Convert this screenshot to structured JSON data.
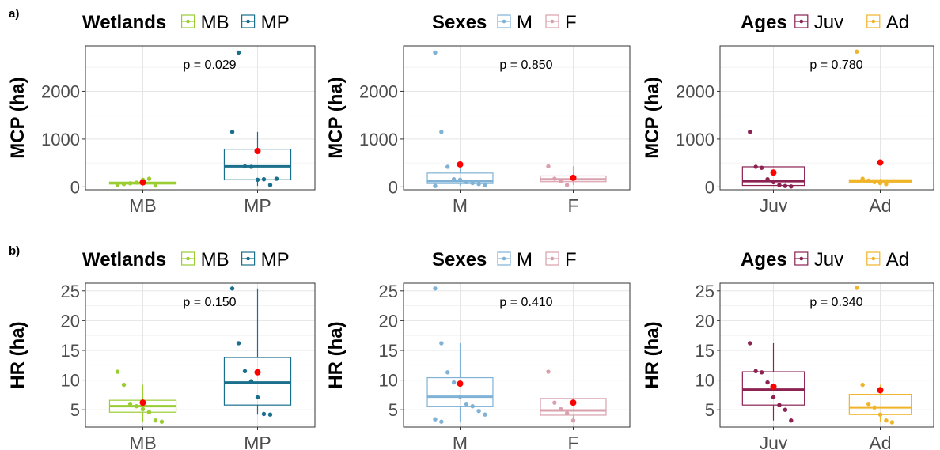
{
  "row_labels": [
    "a)",
    "b)"
  ],
  "colors": {
    "MB": "#9acd32",
    "MP": "#1a6f8c",
    "M": "#7fb2d5",
    "F": "#d9a0ad",
    "Juv": "#8b2252",
    "Ad": "#f0b429",
    "mean_point": "#ff0000"
  },
  "chart_data": [
    {
      "type": "box",
      "panel": "a) wetlands",
      "legend_title": "Wetlands",
      "categories": [
        "MB",
        "MP"
      ],
      "ylabel": "MCP (ha)",
      "ylim": [
        -60,
        2950
      ],
      "yticks": [
        0,
        1000,
        2000
      ],
      "annotation": "p = 0.029",
      "boxes": [
        {
          "name": "MB",
          "q1": 60,
          "median": 80,
          "q3": 100,
          "whisker_low": 50,
          "whisker_high": 120,
          "mean": 95,
          "points": [
            40,
            60,
            75,
            90,
            150,
            170,
            30
          ]
        },
        {
          "name": "MP",
          "q1": 150,
          "median": 430,
          "q3": 790,
          "whisker_low": 20,
          "whisker_high": 1150,
          "mean": 750,
          "points": [
            1150,
            2810,
            430,
            420,
            150,
            160,
            40,
            170
          ]
        }
      ]
    },
    {
      "type": "box",
      "panel": "a) sexes",
      "legend_title": "Sexes",
      "categories": [
        "M",
        "F"
      ],
      "ylabel": "MCP (ha)",
      "ylim": [
        -60,
        2950
      ],
      "yticks": [
        0,
        1000,
        2000
      ],
      "annotation": "p = 0.850",
      "boxes": [
        {
          "name": "M",
          "q1": 70,
          "median": 120,
          "q3": 290,
          "whisker_low": 20,
          "whisker_high": 420,
          "mean": 470,
          "points": [
            2810,
            1150,
            420,
            160,
            150,
            100,
            80,
            60,
            40,
            20
          ]
        },
        {
          "name": "F",
          "q1": 110,
          "median": 160,
          "q3": 230,
          "whisker_low": 40,
          "whisker_high": 430,
          "mean": 190,
          "points": [
            430,
            170,
            120,
            40
          ]
        }
      ]
    },
    {
      "type": "box",
      "panel": "a) ages",
      "legend_title": "Ages",
      "categories": [
        "Juv",
        "Ad"
      ],
      "ylabel": "MCP (ha)",
      "ylim": [
        -60,
        2950
      ],
      "yticks": [
        0,
        1000,
        2000
      ],
      "annotation": "p = 0.780",
      "boxes": [
        {
          "name": "Juv",
          "q1": 30,
          "median": 120,
          "q3": 420,
          "whisker_low": 20,
          "whisker_high": 420,
          "mean": 300,
          "points": [
            1150,
            420,
            400,
            160,
            100,
            40,
            20,
            10
          ]
        },
        {
          "name": "Ad",
          "q1": 100,
          "median": 130,
          "q3": 150,
          "whisker_low": 60,
          "whisker_high": 170,
          "mean": 510,
          "points": [
            2830,
            170,
            130,
            100,
            80,
            60
          ]
        }
      ]
    },
    {
      "type": "box",
      "panel": "b) wetlands",
      "legend_title": "Wetlands",
      "categories": [
        "MB",
        "MP"
      ],
      "ylabel": "HR (ha)",
      "ylim": [
        2.1,
        26.3
      ],
      "yticks": [
        5,
        10,
        15,
        20,
        25
      ],
      "annotation": "p = 0.150",
      "boxes": [
        {
          "name": "MB",
          "q1": 4.6,
          "median": 5.6,
          "q3": 6.6,
          "whisker_low": 3.0,
          "whisker_high": 9.2,
          "mean": 6.2,
          "points": [
            11.4,
            9.2,
            6.0,
            5.6,
            5.1,
            4.6,
            3.2,
            3.0
          ]
        },
        {
          "name": "MP",
          "q1": 5.8,
          "median": 9.6,
          "q3": 13.8,
          "whisker_low": 4.2,
          "whisker_high": 25.4,
          "mean": 11.3,
          "points": [
            25.4,
            16.2,
            11.5,
            9.8,
            7.1,
            4.3,
            4.2
          ]
        }
      ]
    },
    {
      "type": "box",
      "panel": "b) sexes",
      "legend_title": "Sexes",
      "categories": [
        "M",
        "F"
      ],
      "ylabel": "HR (ha)",
      "ylim": [
        2.1,
        26.3
      ],
      "yticks": [
        5,
        10,
        15,
        20,
        25
      ],
      "annotation": "p = 0.410",
      "boxes": [
        {
          "name": "M",
          "q1": 5.6,
          "median": 7.2,
          "q3": 10.4,
          "whisker_low": 3.0,
          "whisker_high": 16.2,
          "mean": 9.4,
          "points": [
            25.4,
            16.2,
            11.3,
            9.6,
            7.2,
            6.0,
            5.6,
            4.8,
            4.2,
            3.4,
            3.0
          ]
        },
        {
          "name": "F",
          "q1": 4.1,
          "median": 4.9,
          "q3": 6.9,
          "whisker_low": 3.2,
          "whisker_high": 6.9,
          "mean": 6.2,
          "points": [
            11.4,
            6.2,
            5.1,
            4.4,
            3.2
          ]
        }
      ]
    },
    {
      "type": "box",
      "panel": "b) ages",
      "legend_title": "Ages",
      "categories": [
        "Juv",
        "Ad"
      ],
      "ylabel": "HR (ha)",
      "ylim": [
        2.1,
        26.3
      ],
      "yticks": [
        5,
        10,
        15,
        20,
        25
      ],
      "annotation": "p = 0.340",
      "boxes": [
        {
          "name": "Juv",
          "q1": 5.8,
          "median": 8.4,
          "q3": 11.4,
          "whisker_low": 3.2,
          "whisker_high": 16.2,
          "mean": 8.9,
          "points": [
            16.2,
            11.5,
            11.3,
            9.6,
            7.1,
            5.8,
            5.0,
            3.2
          ]
        },
        {
          "name": "Ad",
          "q1": 4.2,
          "median": 5.4,
          "q3": 7.6,
          "whisker_low": 2.9,
          "whisker_high": 9.2,
          "mean": 8.3,
          "points": [
            25.5,
            9.2,
            6.0,
            5.4,
            4.2,
            3.2,
            2.9
          ]
        }
      ]
    }
  ]
}
